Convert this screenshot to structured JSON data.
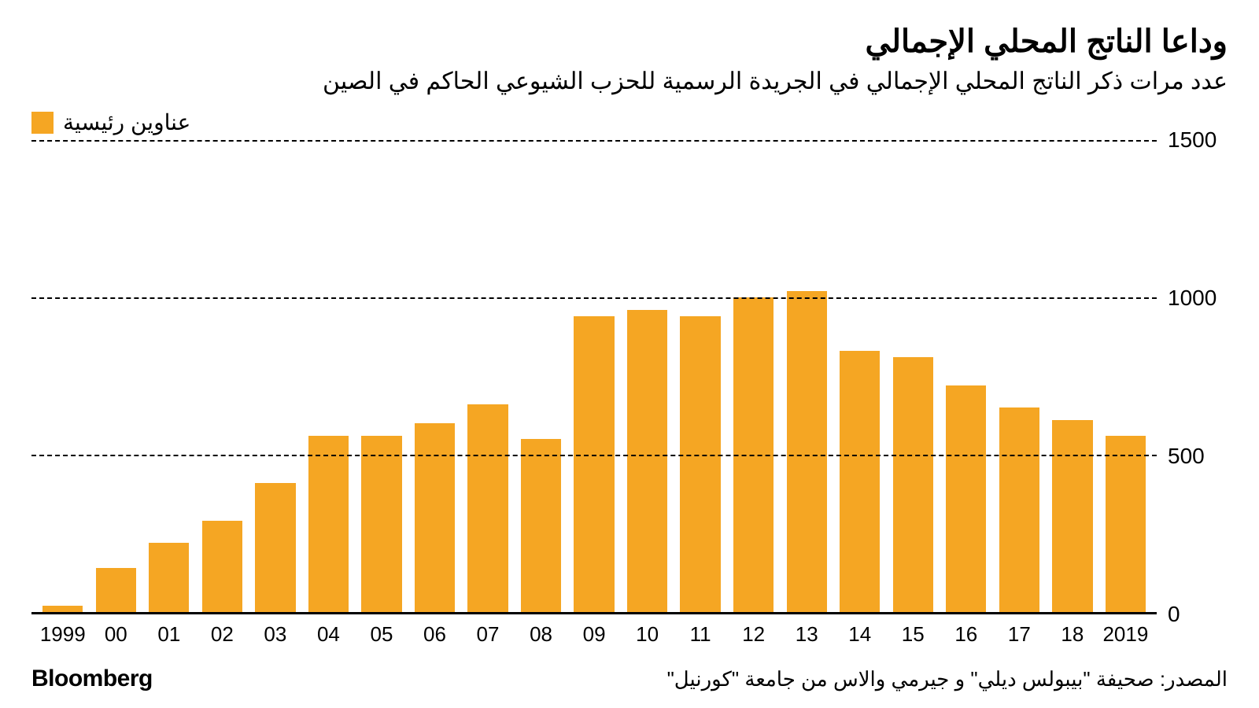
{
  "title": "وداعا الناتج المحلي الإجمالي",
  "subtitle": "عدد مرات ذكر الناتج المحلي الإجمالي في الجريدة الرسمية للحزب الشيوعي الحاكم في الصين",
  "legend": {
    "label": "عناوين رئيسية",
    "color": "#f5a623"
  },
  "chart": {
    "type": "bar",
    "bar_color": "#f5a623",
    "background_color": "#ffffff",
    "grid_color": "#000000",
    "axis_color": "#000000",
    "ylim": [
      0,
      1500
    ],
    "yticks": [
      0,
      500,
      1000,
      1500
    ],
    "categories": [
      "1999",
      "00",
      "01",
      "02",
      "03",
      "04",
      "05",
      "06",
      "07",
      "08",
      "09",
      "10",
      "11",
      "12",
      "13",
      "14",
      "15",
      "16",
      "17",
      "18",
      "2019"
    ],
    "values": [
      20,
      140,
      220,
      290,
      410,
      560,
      560,
      600,
      660,
      550,
      940,
      960,
      940,
      1000,
      1020,
      830,
      810,
      720,
      650,
      610,
      560
    ],
    "bar_width_pct": 76,
    "title_fontsize": 40,
    "subtitle_fontsize": 30,
    "tick_fontsize": 26,
    "ytick_fontsize": 28
  },
  "footer": {
    "brand": "Bloomberg",
    "source": "المصدر: صحيفة \"بيبولس ديلي\" و جيرمي والاس من جامعة \"كورنيل\""
  }
}
